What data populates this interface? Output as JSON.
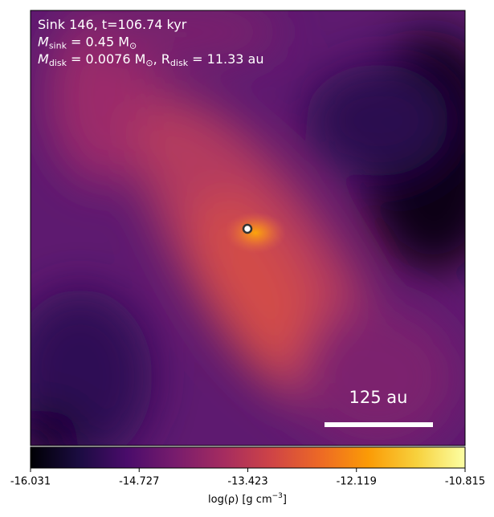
{
  "chart_data": {
    "type": "density-map",
    "annotations": [
      [
        "Sink 146, t=106.74 kyr"
      ],
      [
        "M",
        {
          "sub": "sink"
        },
        " = 0.45 M",
        {
          "sub": "⊙"
        }
      ],
      [
        "M",
        {
          "sub": "disk"
        },
        " = 0.0076 M",
        {
          "sub": "⊙"
        },
        ", R",
        {
          "sub": "disk"
        },
        " = 11.33 au"
      ]
    ],
    "scale_bar_label": "125 au",
    "colorbar": {
      "label": [
        "log(ρ) [g cm",
        {
          "sup": "−3"
        },
        "]"
      ],
      "lim": [
        -16.031,
        -10.815
      ],
      "ticks": [
        -16.031,
        -14.727,
        -13.423,
        -12.119,
        -10.815
      ],
      "colormap": [
        "#000004",
        "#1b0c41",
        "#4a0c6b",
        "#781c6d",
        "#a52c60",
        "#cf4446",
        "#ed6925",
        "#fb9b06",
        "#f7d13d",
        "#fcffa4"
      ]
    }
  }
}
